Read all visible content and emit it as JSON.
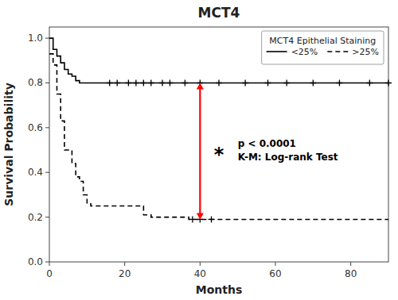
{
  "chart_data": {
    "type": "step",
    "title": "MCT4",
    "x_label": "Months",
    "y_label": "Survival Probability",
    "xlim": [
      0,
      90
    ],
    "ylim": [
      0.0,
      1.05
    ],
    "xticks": [
      0,
      20,
      40,
      60,
      80
    ],
    "yticks": [
      {
        "value": 0.0,
        "label": "0.0"
      },
      0.2,
      0.4,
      0.6,
      0.8,
      {
        "value": 1.0,
        "label": "1.0"
      }
    ],
    "legend": "upper right",
    "legend_title": "MCT4 Epithelial Staining",
    "series": [
      {
        "name": "<25%",
        "color": "#000000",
        "line_style": "solid",
        "marker": "+",
        "x": [
          0,
          0,
          1,
          1,
          2,
          2,
          3,
          3,
          4,
          4,
          5,
          5,
          6,
          6,
          7,
          7,
          8,
          8,
          9,
          9,
          11,
          11,
          12,
          12,
          13,
          13,
          90
        ],
        "values": [
          1.0,
          1.0,
          1.0,
          0.95,
          0.95,
          0.92,
          0.92,
          0.89,
          0.89,
          0.86,
          0.86,
          0.84,
          0.84,
          0.83,
          0.83,
          0.81,
          0.81,
          0.8,
          0.8,
          0.8,
          0.8,
          0.8,
          0.8,
          0.8,
          0.8,
          0.8,
          0.8
        ],
        "censors_x": [
          16,
          18,
          21,
          23,
          25,
          27,
          30,
          32,
          36,
          40,
          45,
          52,
          58,
          63,
          70,
          77,
          85,
          90
        ],
        "censor_y": 0.8
      },
      {
        "name": ">25%",
        "color": "#000000",
        "line_style": "dashed",
        "marker": "+",
        "x": [
          0,
          0,
          1,
          1,
          2,
          2,
          3,
          3,
          4,
          4,
          6,
          6,
          7,
          7,
          8,
          8,
          9,
          9,
          10,
          10,
          11,
          11,
          12,
          12,
          25,
          25,
          27,
          27,
          37,
          37,
          40,
          40,
          90
        ],
        "values": [
          0.93,
          0.93,
          0.93,
          0.88,
          0.88,
          0.75,
          0.75,
          0.63,
          0.63,
          0.5,
          0.5,
          0.44,
          0.44,
          0.38,
          0.38,
          0.36,
          0.36,
          0.3,
          0.3,
          0.26,
          0.26,
          0.25,
          0.25,
          0.25,
          0.25,
          0.21,
          0.21,
          0.2,
          0.2,
          0.19,
          0.19,
          0.19,
          0.19
        ],
        "censors_x": [
          38,
          40,
          43
        ],
        "censor_y": 0.19
      }
    ],
    "annotations": [
      {
        "text": "*",
        "x": 45,
        "y": 0.49
      },
      {
        "text": "p < 0.0001\nK-M: Log-rank Test",
        "x": 50,
        "y": 0.5
      }
    ],
    "arrows": [
      {
        "x": 40,
        "y_top": 0.8,
        "y_bottom": 0.19,
        "color": "#ff0000"
      }
    ]
  }
}
